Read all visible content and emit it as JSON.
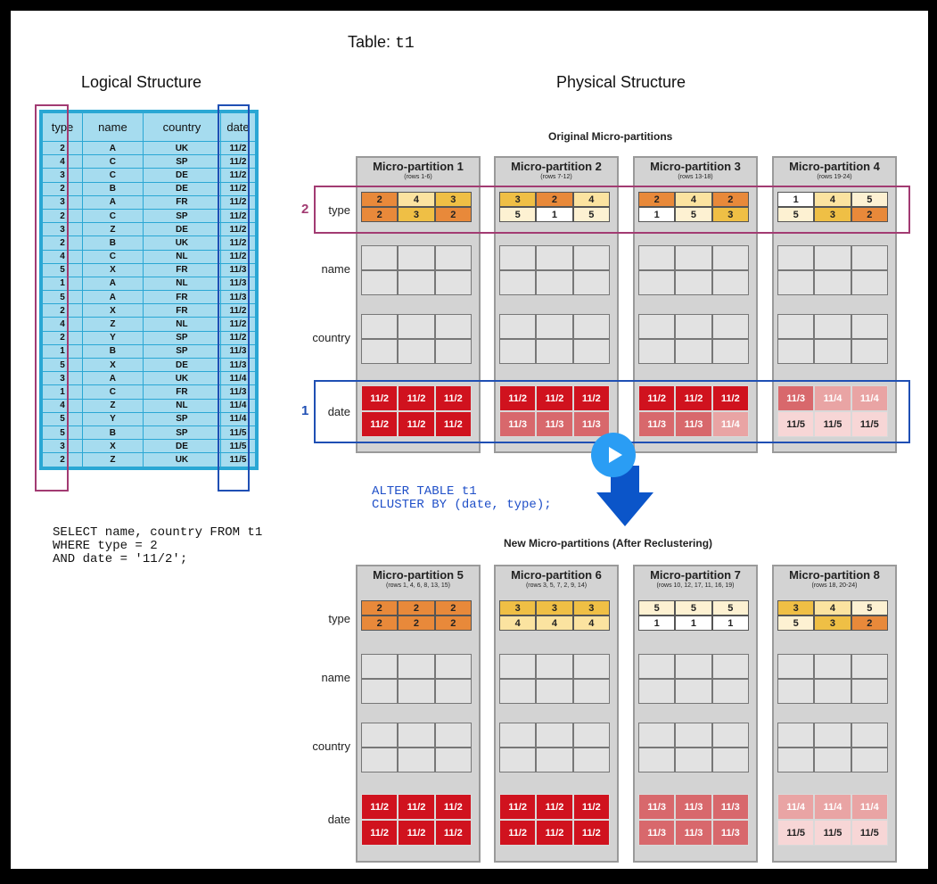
{
  "table_title": {
    "label": "Table:",
    "name": "t1"
  },
  "logical": {
    "title": "Logical Structure",
    "columns": [
      "type",
      "name",
      "country",
      "date"
    ],
    "rows": [
      [
        "2",
        "A",
        "UK",
        "11/2"
      ],
      [
        "4",
        "C",
        "SP",
        "11/2"
      ],
      [
        "3",
        "C",
        "DE",
        "11/2"
      ],
      [
        "2",
        "B",
        "DE",
        "11/2"
      ],
      [
        "3",
        "A",
        "FR",
        "11/2"
      ],
      [
        "2",
        "C",
        "SP",
        "11/2"
      ],
      [
        "3",
        "Z",
        "DE",
        "11/2"
      ],
      [
        "2",
        "B",
        "UK",
        "11/2"
      ],
      [
        "4",
        "C",
        "NL",
        "11/2"
      ],
      [
        "5",
        "X",
        "FR",
        "11/3"
      ],
      [
        "1",
        "A",
        "NL",
        "11/3"
      ],
      [
        "5",
        "A",
        "FR",
        "11/3"
      ],
      [
        "2",
        "X",
        "FR",
        "11/2"
      ],
      [
        "4",
        "Z",
        "NL",
        "11/2"
      ],
      [
        "2",
        "Y",
        "SP",
        "11/2"
      ],
      [
        "1",
        "B",
        "SP",
        "11/3"
      ],
      [
        "5",
        "X",
        "DE",
        "11/3"
      ],
      [
        "3",
        "A",
        "UK",
        "11/4"
      ],
      [
        "1",
        "C",
        "FR",
        "11/3"
      ],
      [
        "4",
        "Z",
        "NL",
        "11/4"
      ],
      [
        "5",
        "Y",
        "SP",
        "11/4"
      ],
      [
        "5",
        "B",
        "SP",
        "11/5"
      ],
      [
        "3",
        "X",
        "DE",
        "11/5"
      ],
      [
        "2",
        "Z",
        "UK",
        "11/5"
      ]
    ]
  },
  "query": "SELECT name, country FROM t1\nWHERE type = 2\nAND date = '11/2';",
  "physical": {
    "title": "Physical Structure",
    "original_title": "Original Micro-partitions",
    "new_title": "New Micro-partitions (After Reclustering)",
    "row_labels": {
      "type": "type",
      "name": "name",
      "country": "country",
      "date": "date"
    },
    "markers": {
      "type": "2",
      "date": "1"
    },
    "alter": "ALTER TABLE t1\nCLUSTER BY (date, type);",
    "colors": {
      "1": "#ffffff",
      "2": "#e8893a",
      "3": "#efbf45",
      "4": "#fbe3a0",
      "5": "#fdf1d2",
      "11/2": "#d0121e",
      "11/3": "#d8686c",
      "11/4": "#e9a4a4",
      "11/5": "#f7d6d6",
      "type_highlight": "#a23b72",
      "date_highlight": "#1f4fb4",
      "arrow": "#0b55c9"
    },
    "original": [
      {
        "title": "Micro-partition 1",
        "rows": "(rows 1-6)",
        "type": [
          "2",
          "4",
          "3",
          "2",
          "3",
          "2"
        ],
        "date": [
          "11/2",
          "11/2",
          "11/2",
          "11/2",
          "11/2",
          "11/2"
        ]
      },
      {
        "title": "Micro-partition 2",
        "rows": "(rows 7-12)",
        "type": [
          "3",
          "2",
          "4",
          "5",
          "1",
          "5"
        ],
        "date": [
          "11/2",
          "11/2",
          "11/2",
          "11/3",
          "11/3",
          "11/3"
        ]
      },
      {
        "title": "Micro-partition 3",
        "rows": "(rows 13-18)",
        "type": [
          "2",
          "4",
          "2",
          "1",
          "5",
          "3"
        ],
        "date": [
          "11/2",
          "11/2",
          "11/2",
          "11/3",
          "11/3",
          "11/4"
        ]
      },
      {
        "title": "Micro-partition 4",
        "rows": "(rows 19-24)",
        "type": [
          "1",
          "4",
          "5",
          "5",
          "3",
          "2"
        ],
        "date": [
          "11/3",
          "11/4",
          "11/4",
          "11/5",
          "11/5",
          "11/5"
        ]
      }
    ],
    "reclustered": [
      {
        "title": "Micro-partition 5",
        "rows": "(rows 1, 4, 6, 8, 13, 15)",
        "type": [
          "2",
          "2",
          "2",
          "2",
          "2",
          "2"
        ],
        "date": [
          "11/2",
          "11/2",
          "11/2",
          "11/2",
          "11/2",
          "11/2"
        ]
      },
      {
        "title": "Micro-partition 6",
        "rows": "(rows 3, 5, 7, 2, 9, 14)",
        "type": [
          "3",
          "3",
          "3",
          "4",
          "4",
          "4"
        ],
        "date": [
          "11/2",
          "11/2",
          "11/2",
          "11/2",
          "11/2",
          "11/2"
        ]
      },
      {
        "title": "Micro-partition 7",
        "rows": "(rows 10, 12, 17, 11, 16, 19)",
        "type": [
          "5",
          "5",
          "5",
          "1",
          "1",
          "1"
        ],
        "date": [
          "11/3",
          "11/3",
          "11/3",
          "11/3",
          "11/3",
          "11/3"
        ]
      },
      {
        "title": "Micro-partition 8",
        "rows": "(rows 18, 20-24)",
        "type": [
          "3",
          "4",
          "5",
          "5",
          "3",
          "2"
        ],
        "date": [
          "11/4",
          "11/4",
          "11/4",
          "11/5",
          "11/5",
          "11/5"
        ]
      }
    ]
  }
}
